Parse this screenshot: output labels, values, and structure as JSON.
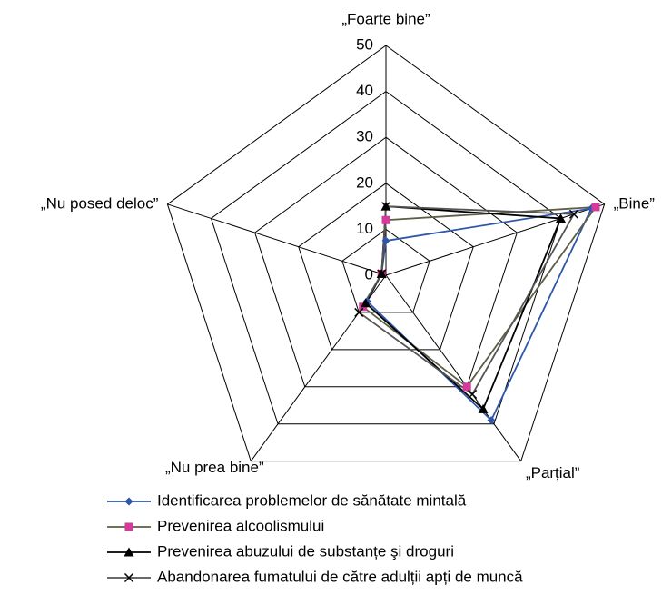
{
  "chart_data": {
    "type": "radar",
    "categories": [
      "„Foarte bine”",
      "„Bine”",
      "„Parțial”",
      "„Nu prea bine”",
      "„Nu posed deloc”"
    ],
    "ylim": [
      0,
      50
    ],
    "yticks": [
      0,
      10,
      20,
      30,
      40,
      50
    ],
    "grid": true,
    "legend": "bottom",
    "series": [
      {
        "name": "Identificarea problemelor de sănătate mintală",
        "color": "#2e57a8",
        "marker_color": "#2e57a8",
        "marker": "diamond",
        "values": [
          7.5,
          47,
          39,
          7,
          1
        ]
      },
      {
        "name": "Prevenirea alcoolismului",
        "color": "#5e5e45",
        "marker_color": "#d33a9a",
        "marker": "square",
        "values": [
          12,
          48,
          30,
          8.5,
          1
        ]
      },
      {
        "name": "Prevenirea abuzului de substanțe şi droguri",
        "color": "#000000",
        "marker_color": "#000000",
        "marker": "triangle",
        "values": [
          15,
          40,
          36,
          7.5,
          1
        ]
      },
      {
        "name": "Abandonarea fumatului de către adulții apți de muncă",
        "color": "#555555",
        "marker_color": "#000000",
        "marker": "cross",
        "values": [
          15,
          43,
          32,
          10,
          1
        ]
      }
    ]
  }
}
